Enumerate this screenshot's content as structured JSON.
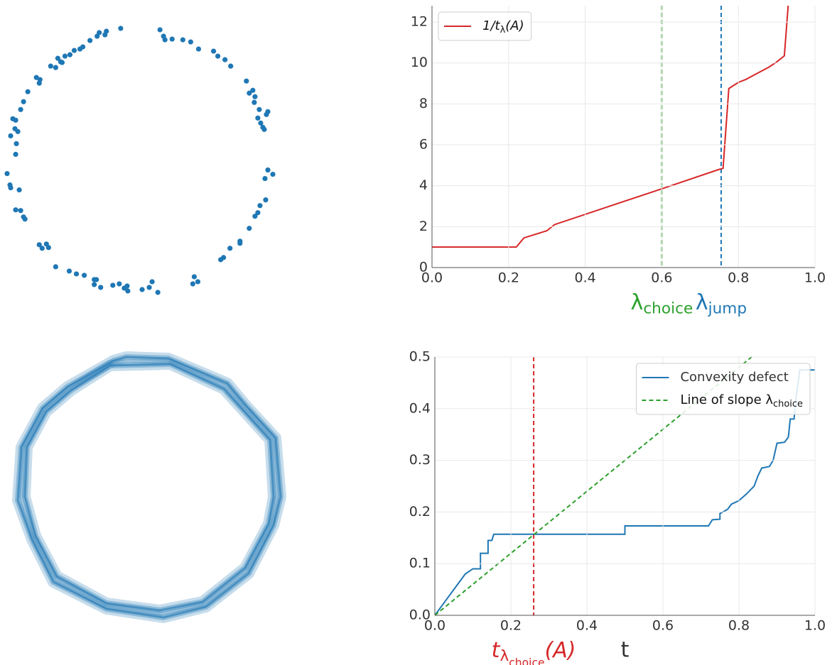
{
  "chart_data": [
    {
      "type": "scatter",
      "color": "#1f77b4",
      "x": [
        170,
        150,
        148,
        140,
        137,
        127,
        117,
        113,
        105,
        99,
        92,
        86,
        82,
        72,
        79,
        88,
        57,
        52,
        56,
        40,
        34,
        30,
        19,
        23,
        22,
        26,
        16,
        24,
        23,
        11,
        15,
        16,
        28,
        23,
        30,
        34,
        36,
        56,
        60,
        66,
        69,
        79,
        98,
        108,
        119,
        133,
        136,
        133,
        142,
        159,
        168,
        175,
        180,
        179,
        200,
        210,
        214,
        222,
        273,
        278,
        271,
        225,
        230,
        232,
        242,
        257,
        268,
        279,
        300,
        306,
        316,
        324,
        346,
        355,
        350,
        358,
        357,
        364,
        362,
        376,
        374,
        366,
        369,
        371,
        376,
        383,
        372,
        373,
        365,
        362,
        358,
        350,
        337,
        337,
        323,
        314,
        310
      ],
      "values": [
        409,
        405,
        400,
        403,
        398,
        392,
        383,
        380,
        378,
        372,
        370,
        362,
        367,
        356,
        354,
        361,
        337,
        340,
        332,
        320,
        306,
        295,
        282,
        280,
        268,
        264,
        258,
        247,
        232,
        205,
        189,
        185,
        182,
        154,
        153,
        144,
        141,
        105,
        100,
        106,
        101,
        74,
        68,
        64,
        62,
        56,
        56,
        49,
        45,
        48,
        50,
        44,
        40,
        47,
        42,
        45,
        53,
        38,
        60,
        53,
        50,
        407,
        398,
        393,
        394,
        393,
        390,
        380,
        377,
        370,
        365,
        356,
        335,
        322,
        318,
        313,
        305,
        295,
        283,
        292,
        288,
        276,
        270,
        267,
        210,
        204,
        198,
        168,
        160,
        150,
        145,
        128,
        110,
        107,
        100,
        87,
        84
      ]
    },
    {
      "type": "polygon",
      "color": "#1f77b4",
      "polygons": [
        {
          "x": [
            160,
            178,
            237,
            320,
            345,
            388,
            395,
            385,
            350,
            290,
            230,
            150,
            75,
            45,
            25,
            30,
            60,
            95
          ],
          "y": [
            392,
            397,
            395,
            360,
            330,
            283,
            200,
            160,
            92,
            45,
            30,
            42,
            80,
            140,
            195,
            270,
            325,
            355
          ]
        },
        {
          "x": [
            155,
            240,
            315,
            380,
            385,
            378,
            345,
            285,
            225,
            150,
            80,
            50,
            35,
            38,
            65,
            100
          ],
          "y": [
            385,
            387,
            352,
            280,
            200,
            162,
            100,
            52,
            40,
            50,
            88,
            145,
            200,
            270,
            320,
            350
          ]
        }
      ]
    },
    {
      "type": "line",
      "xlim": [
        0,
        1
      ],
      "ylim": [
        0,
        12.8
      ],
      "xticks": [
        {
          "value": 0,
          "label": "0.0"
        },
        0.2,
        0.4,
        0.6,
        0.8,
        {
          "value": 1,
          "label": "1.0"
        }
      ],
      "yticks": [
        0,
        2,
        4,
        6,
        8,
        10,
        12
      ],
      "grid": true,
      "legend": "upper left",
      "series": [
        {
          "name": [
            {
              "text": "1/t"
            },
            {
              "text": "λ",
              "sub": 1
            },
            {
              "text": "(A)"
            }
          ],
          "color": "#d62728",
          "x": [
            0,
            0.22,
            0.24,
            0.3,
            0.32,
            0.6,
            0.75,
            0.76,
            0.775,
            0.8,
            0.82,
            0.84,
            0.88,
            0.9,
            0.92,
            0.93
          ],
          "values": [
            1,
            1,
            1.45,
            1.8,
            2.1,
            3.85,
            4.8,
            4.85,
            8.75,
            9.05,
            9.2,
            9.4,
            9.8,
            10.05,
            10.35,
            12.8
          ]
        }
      ],
      "vlines": [
        {
          "x": 0.6,
          "color": "#2ca02c",
          "label": [
            {
              "text": "λ"
            },
            {
              "text": "choice",
              "sub": 1
            }
          ]
        },
        {
          "x": 0.755,
          "color": "#1f77b4",
          "label": [
            {
              "text": "λ"
            },
            {
              "text": "jump",
              "sub": 1
            }
          ]
        }
      ]
    },
    {
      "type": "line",
      "xlim": [
        0,
        1
      ],
      "ylim": [
        0,
        0.5
      ],
      "xlabel": "t",
      "xticks": [
        {
          "value": 0,
          "label": "0.0"
        },
        0.2,
        0.4,
        0.6,
        0.8,
        {
          "value": 1,
          "label": "1.0"
        }
      ],
      "yticks": [
        {
          "value": 0,
          "label": "0.0"
        },
        0.1,
        0.2,
        0.3,
        0.4,
        0.5
      ],
      "grid": true,
      "legend": "upper right",
      "series": [
        {
          "name": "Convexity defect",
          "color": "#1f77b4",
          "x": [
            0,
            0.02,
            0.05,
            0.08,
            0.1,
            0.12,
            0.12,
            0.14,
            0.14,
            0.15,
            0.155,
            0.5,
            0.5,
            0.72,
            0.73,
            0.75,
            0.75,
            0.77,
            0.78,
            0.8,
            0.82,
            0.84,
            0.85,
            0.86,
            0.88,
            0.89,
            0.9,
            0.92,
            0.93,
            0.935,
            0.945,
            0.95,
            0.96,
            1
          ],
          "values": [
            0,
            0.02,
            0.05,
            0.08,
            0.09,
            0.09,
            0.12,
            0.12,
            0.145,
            0.145,
            0.157,
            0.157,
            0.173,
            0.173,
            0.185,
            0.186,
            0.197,
            0.205,
            0.215,
            0.222,
            0.235,
            0.25,
            0.27,
            0.285,
            0.288,
            0.3,
            0.333,
            0.335,
            0.345,
            0.38,
            0.38,
            0.42,
            0.475,
            0.475
          ]
        },
        {
          "name": [
            {
              "text": "Line of slope "
            },
            {
              "text": "λ"
            },
            {
              "text": "choice",
              "sub": 1
            }
          ],
          "color": "#2ca02c",
          "dashed": true,
          "slope": 0.6
        }
      ],
      "vlines": [
        {
          "x": 0.26,
          "color": "#d62728",
          "label": [
            {
              "text": "t"
            },
            {
              "text": "λ",
              "sub": 1
            },
            {
              "text": "choice",
              "sub": 2
            },
            {
              "text": "(A)"
            }
          ]
        }
      ]
    }
  ]
}
